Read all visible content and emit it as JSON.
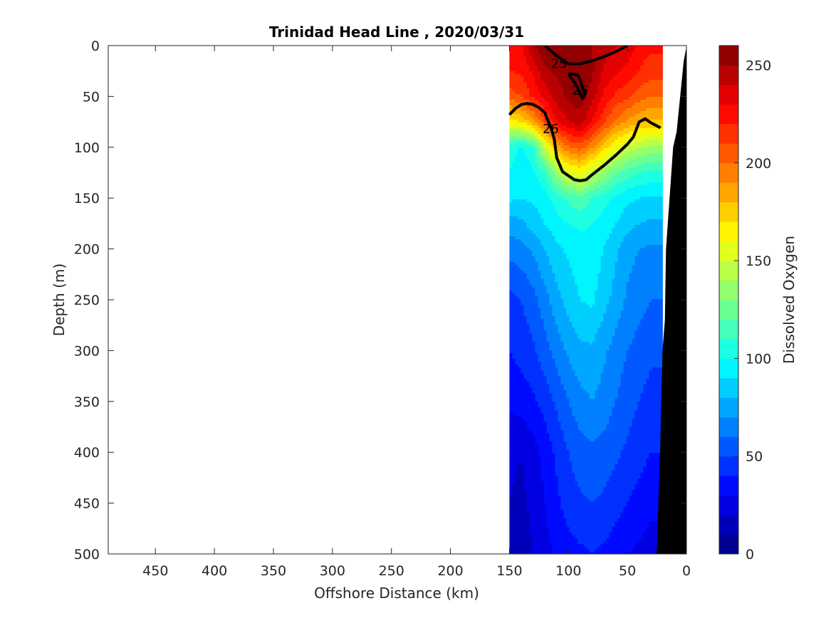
{
  "chart_data": {
    "type": "heatmap",
    "title": "Trinidad Head Line , 2020/03/31",
    "xlabel": "Offshore Distance (km)",
    "ylabel": "Depth (m)",
    "xlim": [
      490,
      0
    ],
    "ylim": [
      500,
      0
    ],
    "x_reversed": true,
    "y_reversed": true,
    "x_ticks": [
      450,
      400,
      350,
      300,
      250,
      200,
      150,
      100,
      50,
      0
    ],
    "y_ticks": [
      0,
      50,
      100,
      150,
      200,
      250,
      300,
      350,
      400,
      450,
      500
    ],
    "colorbar": {
      "label": "Dissolved Oxygen",
      "range": [
        0,
        260
      ],
      "ticks": [
        0,
        50,
        100,
        150,
        200,
        250
      ],
      "levels": 26,
      "colormap": "jet"
    },
    "data_extent_x": [
      150,
      20
    ],
    "x": [
      150,
      140,
      130,
      120,
      110,
      100,
      90,
      80,
      70,
      60,
      50,
      40,
      30,
      20
    ],
    "depths": [
      0,
      25,
      50,
      75,
      100,
      125,
      150,
      175,
      200,
      250,
      300,
      350,
      400,
      450,
      500
    ],
    "values": [
      [
        225,
        225,
        250,
        258,
        258,
        256,
        255,
        250,
        245,
        240,
        238,
        225,
        222,
        222
      ],
      [
        220,
        222,
        232,
        248,
        252,
        255,
        256,
        252,
        238,
        232,
        226,
        220,
        215,
        215
      ],
      [
        205,
        210,
        222,
        232,
        245,
        252,
        256,
        245,
        228,
        218,
        212,
        205,
        200,
        200
      ],
      [
        165,
        170,
        185,
        210,
        228,
        240,
        245,
        228,
        212,
        198,
        188,
        182,
        178,
        178
      ],
      [
        105,
        98,
        108,
        150,
        182,
        200,
        205,
        192,
        175,
        158,
        148,
        142,
        138,
        138
      ],
      [
        100,
        95,
        98,
        110,
        135,
        155,
        160,
        148,
        135,
        122,
        115,
        110,
        108,
        108
      ],
      [
        92,
        90,
        92,
        96,
        105,
        112,
        118,
        110,
        104,
        98,
        92,
        90,
        88,
        88
      ],
      [
        75,
        78,
        84,
        90,
        96,
        100,
        102,
        100,
        96,
        90,
        84,
        80,
        78,
        78
      ],
      [
        64,
        66,
        72,
        80,
        88,
        92,
        96,
        96,
        90,
        82,
        74,
        70,
        68,
        68
      ],
      [
        46,
        50,
        56,
        66,
        76,
        84,
        90,
        92,
        84,
        76,
        68,
        64,
        60,
        60
      ],
      [
        40,
        44,
        48,
        56,
        64,
        72,
        78,
        78,
        72,
        66,
        60,
        56,
        52,
        52
      ],
      [
        32,
        34,
        38,
        44,
        52,
        60,
        66,
        70,
        66,
        60,
        54,
        50,
        46,
        46
      ],
      [
        22,
        20,
        26,
        34,
        42,
        50,
        56,
        58,
        56,
        52,
        48,
        44,
        40,
        40
      ],
      [
        20,
        18,
        22,
        30,
        38,
        44,
        48,
        50,
        48,
        44,
        40,
        36,
        32,
        32
      ],
      [
        18,
        16,
        20,
        26,
        32,
        36,
        38,
        40,
        38,
        34,
        30,
        28,
        26,
        26
      ]
    ],
    "density_contours": [
      {
        "level": "25",
        "x": [
          120,
          110,
          100,
          90,
          80,
          70,
          60,
          50
        ],
        "y": [
          0,
          10,
          18,
          18,
          15,
          11,
          6,
          0
        ],
        "label_at": [
          108,
          18
        ]
      },
      {
        "level": "25",
        "x": [
          100,
          96,
          92,
          90,
          88,
          86,
          88,
          90,
          92,
          95,
          100
        ],
        "y": [
          28,
          28,
          29,
          34,
          42,
          48,
          52,
          48,
          42,
          36,
          28
        ],
        "label_at": [
          90,
          44
        ]
      },
      {
        "level": "26",
        "x": [
          150,
          145,
          140,
          135,
          130,
          125,
          120,
          118,
          115,
          112,
          110,
          105,
          100,
          95,
          90,
          85,
          80,
          70,
          60,
          50,
          45,
          40,
          35,
          30,
          25,
          22
        ],
        "y": [
          68,
          62,
          58,
          57,
          58,
          61,
          66,
          72,
          80,
          92,
          110,
          124,
          128,
          132,
          133,
          132,
          127,
          118,
          108,
          97,
          90,
          75,
          72,
          76,
          79,
          81
        ],
        "label_at": [
          115,
          82
        ]
      }
    ],
    "bathymetry_x": [
      25,
      22,
      20,
      18,
      17,
      14,
      11,
      8,
      5,
      2,
      0,
      0
    ],
    "bathymetry_y": [
      500,
      400,
      300,
      270,
      200,
      150,
      100,
      85,
      50,
      15,
      3,
      500
    ]
  }
}
